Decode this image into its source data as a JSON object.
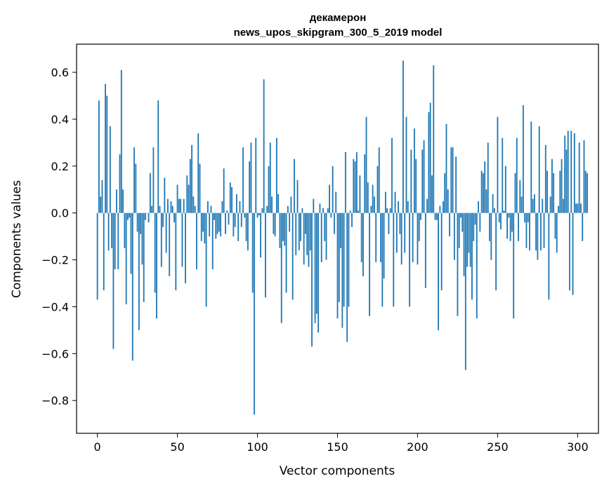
{
  "chart_data": {
    "type": "bar",
    "title": "декамерон",
    "subtitle": "news_upos_skipgram_300_5_2019 model",
    "xlabel": "Vector components",
    "ylabel": "Components values",
    "xlim": [
      -13,
      313
    ],
    "ylim": [
      -0.94,
      0.72
    ],
    "x_ticks": [
      0,
      50,
      100,
      150,
      200,
      250,
      300
    ],
    "x_tick_labels": [
      "0",
      "50",
      "100",
      "150",
      "200",
      "250",
      "300"
    ],
    "y_ticks": [
      -0.8,
      -0.6,
      -0.4,
      -0.2,
      0.0,
      0.2,
      0.4,
      0.6
    ],
    "y_tick_labels": [
      "−0.8",
      "−0.6",
      "−0.4",
      "−0.2",
      "0.0",
      "0.2",
      "0.4",
      "0.6"
    ],
    "grid": false,
    "bar_color": "#1f77b4",
    "values": [
      -0.37,
      0.48,
      0.07,
      0.14,
      -0.33,
      0.55,
      0.5,
      -0.16,
      0.37,
      -0.15,
      -0.58,
      -0.24,
      0.1,
      -0.24,
      0.25,
      0.61,
      0.1,
      -0.15,
      -0.39,
      -0.03,
      -0.02,
      -0.26,
      -0.63,
      0.28,
      0.21,
      -0.08,
      -0.5,
      -0.09,
      -0.22,
      -0.38,
      -0.03,
      0.0,
      -0.04,
      0.17,
      0.03,
      0.28,
      -0.34,
      -0.45,
      0.48,
      0.03,
      -0.23,
      -0.06,
      0.15,
      -0.17,
      0.06,
      -0.27,
      0.05,
      0.03,
      -0.04,
      -0.33,
      0.12,
      0.06,
      0.06,
      -0.23,
      0.06,
      -0.3,
      0.16,
      0.12,
      0.23,
      0.29,
      0.07,
      0.03,
      -0.24,
      0.34,
      0.21,
      -0.12,
      -0.08,
      -0.13,
      -0.4,
      0.05,
      -0.1,
      0.03,
      -0.24,
      -0.03,
      -0.11,
      -0.09,
      -0.08,
      -0.1,
      0.05,
      0.19,
      -0.09,
      0.01,
      -0.05,
      0.13,
      0.11,
      -0.1,
      -0.06,
      0.08,
      -0.12,
      0.05,
      -0.06,
      0.28,
      -0.02,
      -0.12,
      -0.16,
      0.22,
      0.3,
      -0.34,
      -0.86,
      0.32,
      -0.02,
      -0.01,
      -0.19,
      0.02,
      0.57,
      -0.36,
      0.03,
      0.2,
      0.3,
      0.07,
      -0.09,
      -0.1,
      0.32,
      0.08,
      -0.15,
      -0.47,
      -0.12,
      -0.14,
      -0.34,
      0.03,
      -0.08,
      0.07,
      -0.37,
      0.23,
      -0.18,
      0.14,
      -0.16,
      -0.12,
      0.02,
      -0.22,
      -0.09,
      -0.18,
      -0.23,
      -0.16,
      -0.57,
      0.06,
      -0.47,
      -0.43,
      -0.51,
      0.04,
      -0.21,
      0.02,
      -0.12,
      -0.2,
      0.02,
      0.12,
      -0.02,
      0.2,
      -0.09,
      0.09,
      -0.45,
      -0.38,
      -0.15,
      -0.49,
      -0.4,
      0.26,
      -0.55,
      -0.4,
      0.01,
      -0.06,
      0.23,
      0.22,
      0.26,
      0.01,
      0.16,
      -0.21,
      -0.27,
      0.25,
      0.41,
      0.13,
      -0.44,
      0.03,
      0.12,
      0.07,
      -0.21,
      0.2,
      0.28,
      -0.21,
      -0.4,
      -0.28,
      0.09,
      0.02,
      -0.09,
      0.02,
      0.32,
      -0.4,
      0.09,
      -0.17,
      0.05,
      -0.09,
      -0.22,
      0.65,
      -0.17,
      0.41,
      0.05,
      -0.4,
      0.27,
      -0.21,
      0.36,
      0.23,
      -0.22,
      -0.12,
      -0.03,
      0.27,
      0.31,
      -0.32,
      0.06,
      0.43,
      0.47,
      0.16,
      0.63,
      -0.03,
      -0.03,
      -0.5,
      0.03,
      -0.33,
      0.05,
      0.17,
      0.38,
      0.1,
      -0.1,
      0.28,
      0.28,
      -0.2,
      0.24,
      -0.44,
      -0.15,
      -0.02,
      -0.08,
      -0.27,
      -0.67,
      -0.23,
      -0.17,
      -0.23,
      -0.37,
      -0.12,
      -0.05,
      -0.45,
      0.05,
      -0.08,
      0.18,
      0.17,
      0.22,
      0.1,
      0.3,
      -0.12,
      -0.2,
      0.08,
      0.02,
      -0.33,
      0.41,
      -0.04,
      -0.07,
      0.32,
      0.01,
      0.2,
      -0.11,
      -0.02,
      -0.12,
      -0.08,
      -0.45,
      0.17,
      0.32,
      -0.12,
      0.14,
      0.07,
      0.46,
      -0.04,
      -0.15,
      -0.04,
      -0.16,
      0.39,
      0.06,
      0.08,
      -0.16,
      -0.2,
      0.37,
      -0.16,
      0.06,
      -0.15,
      0.29,
      0.18,
      -0.37,
      0.07,
      0.23,
      0.17,
      -0.11,
      -0.17,
      0.03,
      0.18,
      0.23,
      0.06,
      0.33,
      0.27,
      0.35,
      -0.33,
      0.35,
      -0.35,
      0.34,
      0.04,
      0.04,
      0.3,
      0.04,
      -0.12,
      0.31,
      0.18,
      0.17
    ]
  }
}
